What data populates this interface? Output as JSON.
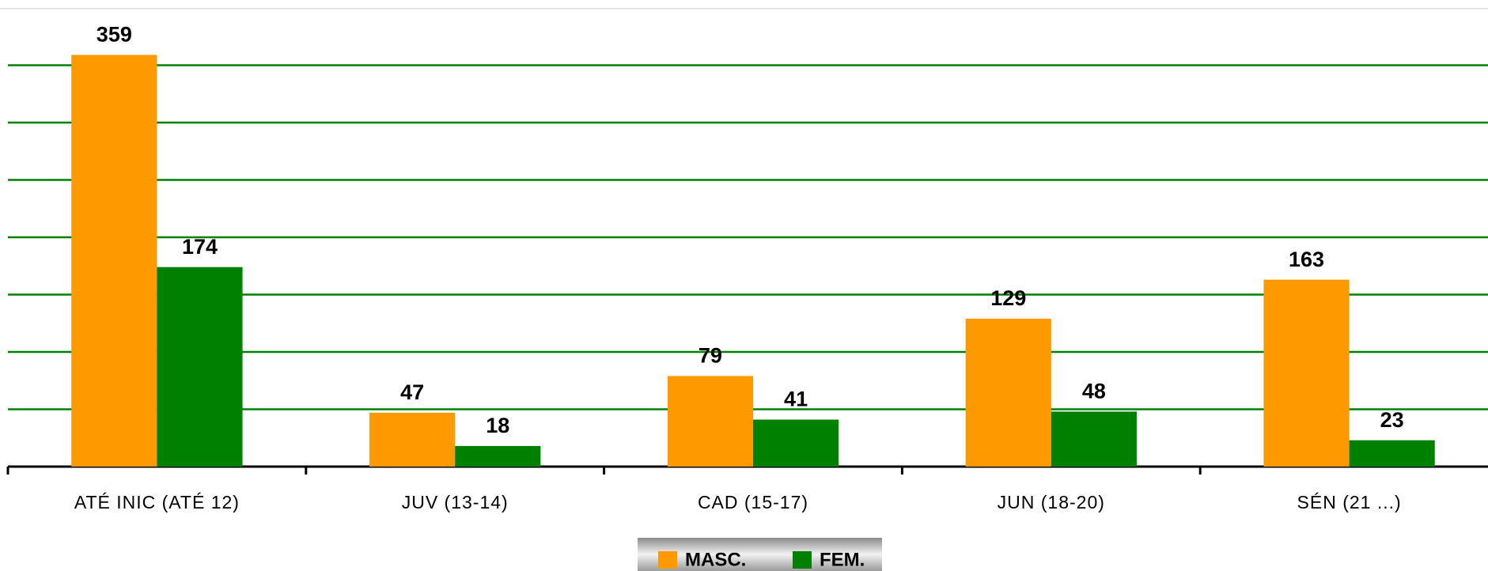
{
  "chart_data": {
    "type": "bar",
    "categories": [
      "ATÉ INIC (ATÉ 12)",
      "JUV (13-14)",
      "CAD (15-17)",
      "JUN (18-20)",
      "SÉN (21 ...)"
    ],
    "series": [
      {
        "name": "MASC.",
        "color": "#ff9900",
        "values": [
          359,
          47,
          79,
          129,
          163
        ]
      },
      {
        "name": "FEM.",
        "color": "#008000",
        "values": [
          174,
          18,
          41,
          48,
          23
        ]
      }
    ],
    "ylim": [
      0,
      400
    ],
    "yticks": [
      0,
      50,
      100,
      150,
      200,
      250,
      300,
      350
    ],
    "grid": true,
    "grid_color": "#008000"
  }
}
